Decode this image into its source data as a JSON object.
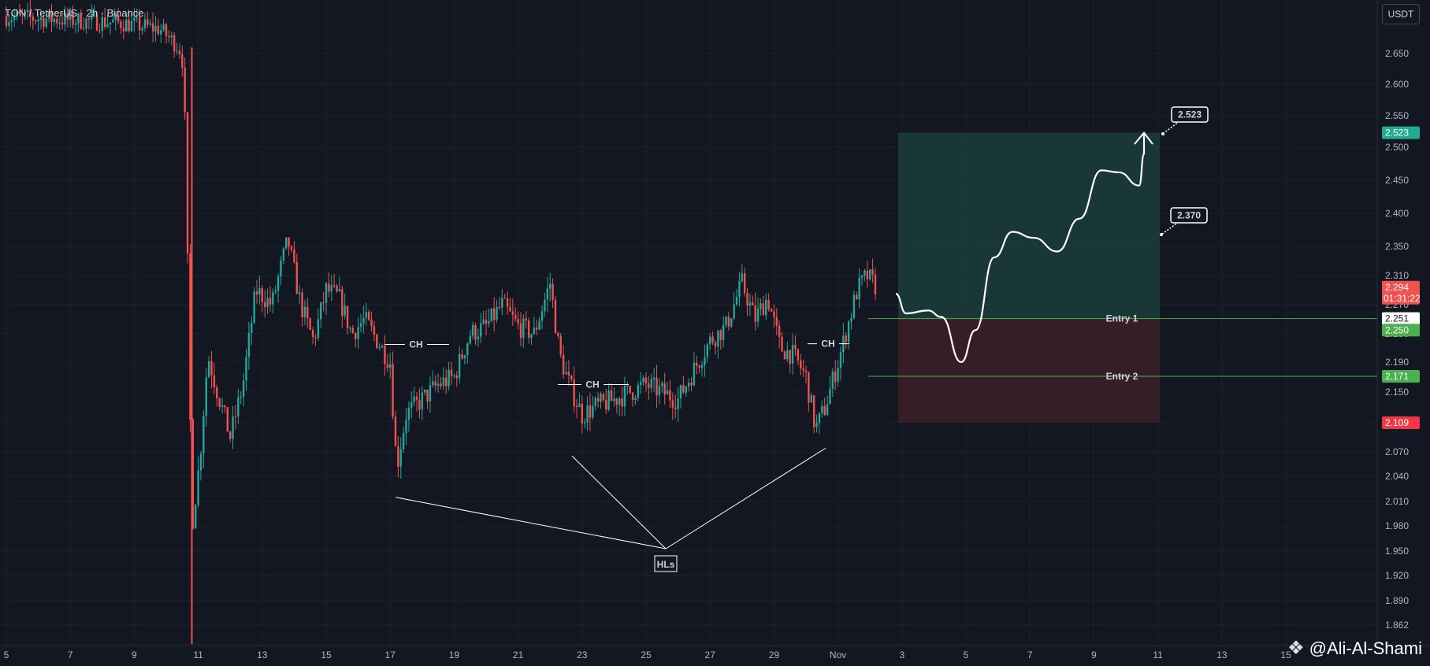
{
  "header": {
    "symbol_title": "TON / TetherUS · 2h · Binance",
    "currency": "USDT"
  },
  "watermark": {
    "text": "@Ali-Al-Shami"
  },
  "colors": {
    "background": "#131722",
    "grid": "#1e222d",
    "up": "#26a69a",
    "down": "#ef5350",
    "target_zone": "#1a3d3a",
    "stop_zone": "#3a1f27",
    "entry_line": "#4caf50",
    "annotation": "#ffffff"
  },
  "chart_data": {
    "type": "candlestick",
    "title": "TON / TetherUS · 2h · Binance",
    "x_ticks": [
      "5",
      "7",
      "9",
      "11",
      "13",
      "15",
      "17",
      "19",
      "21",
      "23",
      "25",
      "27",
      "29",
      "Nov",
      "3",
      "5",
      "7",
      "9",
      "11",
      "13",
      "15"
    ],
    "y_ticks": [
      "2.650",
      "2.600",
      "2.550",
      "2.500",
      "2.450",
      "2.400",
      "2.350",
      "2.310",
      "2.270",
      "2.230",
      "2.190",
      "2.150",
      "2.110",
      "2.070",
      "2.040",
      "2.010",
      "1.980",
      "1.950",
      "1.920",
      "1.890",
      "1.862"
    ],
    "series_close_path": [
      [
        5,
        2.71
      ],
      [
        8.6,
        2.7
      ],
      [
        9.8,
        2.69
      ],
      [
        10.4,
        2.66
      ],
      [
        10.55,
        2.63
      ],
      [
        10.8,
        1.98
      ],
      [
        11.05,
        2.06
      ],
      [
        11.3,
        2.2
      ],
      [
        11.6,
        2.15
      ],
      [
        12,
        2.09
      ],
      [
        12.4,
        2.16
      ],
      [
        12.8,
        2.29
      ],
      [
        13.3,
        2.27
      ],
      [
        13.8,
        2.36
      ],
      [
        14.2,
        2.27
      ],
      [
        14.6,
        2.22
      ],
      [
        15,
        2.29
      ],
      [
        15.4,
        2.28
      ],
      [
        15.8,
        2.23
      ],
      [
        16.2,
        2.25
      ],
      [
        16.6,
        2.22
      ],
      [
        17,
        2.19
      ],
      [
        17.2,
        2.05
      ],
      [
        17.5,
        2.12
      ],
      [
        18,
        2.14
      ],
      [
        18.5,
        2.16
      ],
      [
        19,
        2.17
      ],
      [
        19.5,
        2.23
      ],
      [
        20,
        2.24
      ],
      [
        20.5,
        2.27
      ],
      [
        21,
        2.24
      ],
      [
        21.5,
        2.23
      ],
      [
        22,
        2.3
      ],
      [
        22.3,
        2.2
      ],
      [
        22.6,
        2.16
      ],
      [
        23,
        2.12
      ],
      [
        23.4,
        2.13
      ],
      [
        24,
        2.14
      ],
      [
        24.5,
        2.15
      ],
      [
        25,
        2.16
      ],
      [
        25.5,
        2.15
      ],
      [
        26,
        2.14
      ],
      [
        26.5,
        2.18
      ],
      [
        27,
        2.22
      ],
      [
        27.5,
        2.24
      ],
      [
        28,
        2.3
      ],
      [
        28.4,
        2.25
      ],
      [
        28.8,
        2.28
      ],
      [
        29.2,
        2.21
      ],
      [
        29.6,
        2.2
      ],
      [
        30,
        2.17
      ],
      [
        30.3,
        2.1
      ],
      [
        30.6,
        2.13
      ],
      [
        31,
        2.19
      ],
      [
        31.3,
        2.24
      ],
      [
        31.6,
        2.29
      ],
      [
        31.9,
        2.31
      ],
      [
        32.2,
        2.294
      ]
    ],
    "current_price": {
      "value": "2.294",
      "countdown": "01:31:22"
    },
    "target": {
      "value": 2.523,
      "label": "2.523"
    },
    "stop": {
      "value": 2.109,
      "label": "2.109"
    },
    "entries": [
      {
        "name": "Entry 1",
        "value": 2.251,
        "axis_label": "2.251",
        "axis_label_2": "2.250"
      },
      {
        "name": "Entry 2",
        "value": 2.171,
        "axis_label": "2.171"
      }
    ],
    "notes": [
      {
        "text": "2.523"
      },
      {
        "text": "2.370"
      }
    ],
    "annotations": {
      "ch_labels": [
        "CH",
        "CH",
        "CH"
      ],
      "hl_label": "HLs"
    }
  }
}
